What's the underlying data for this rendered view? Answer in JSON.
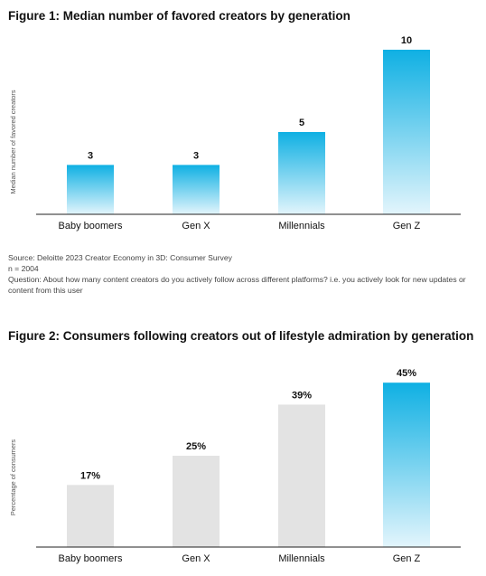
{
  "figure1": {
    "title": "Figure 1: Median number of favored creators by generation",
    "source": "Source: Deloitte 2023 Creator Economy in 3D: Consumer Survey",
    "n": "n = 2004",
    "question": "Question: About how many content creators do you actively follow across different platforms? i.e. you actively look for new updates or content from this user"
  },
  "figure2": {
    "title": "Figure 2: Consumers following creators out of lifestyle admiration by generation"
  },
  "colors": {
    "gradient_top": "#0fb0e3",
    "gradient_bottom": "#e3f5fc",
    "gray_bar": "#e3e3e3",
    "axis": "#222222"
  },
  "chart_data": [
    {
      "type": "bar",
      "title": "Figure 1: Median number of favored creators by generation",
      "ylabel": "Median number of favored creators",
      "categories": [
        "Baby boomers",
        "Gen X",
        "Millennials",
        "Gen Z"
      ],
      "values": [
        3,
        3,
        5,
        10
      ],
      "data_labels": [
        "3",
        "3",
        "5",
        "10"
      ],
      "ylim": [
        0,
        10
      ],
      "bar_styles": [
        "gradient",
        "gradient",
        "gradient",
        "gradient"
      ],
      "grid": false
    },
    {
      "type": "bar",
      "title": "Figure 2: Consumers following creators out of lifestyle admiration by generation",
      "ylabel": "Percentage of consumers",
      "categories": [
        "Baby boomers",
        "Gen X",
        "Millennials",
        "Gen Z"
      ],
      "values": [
        17,
        25,
        39,
        45
      ],
      "data_labels": [
        "17%",
        "25%",
        "39%",
        "45%"
      ],
      "ylim": [
        0,
        45
      ],
      "bar_styles": [
        "gray",
        "gray",
        "gray",
        "gradient"
      ],
      "grid": false
    }
  ]
}
